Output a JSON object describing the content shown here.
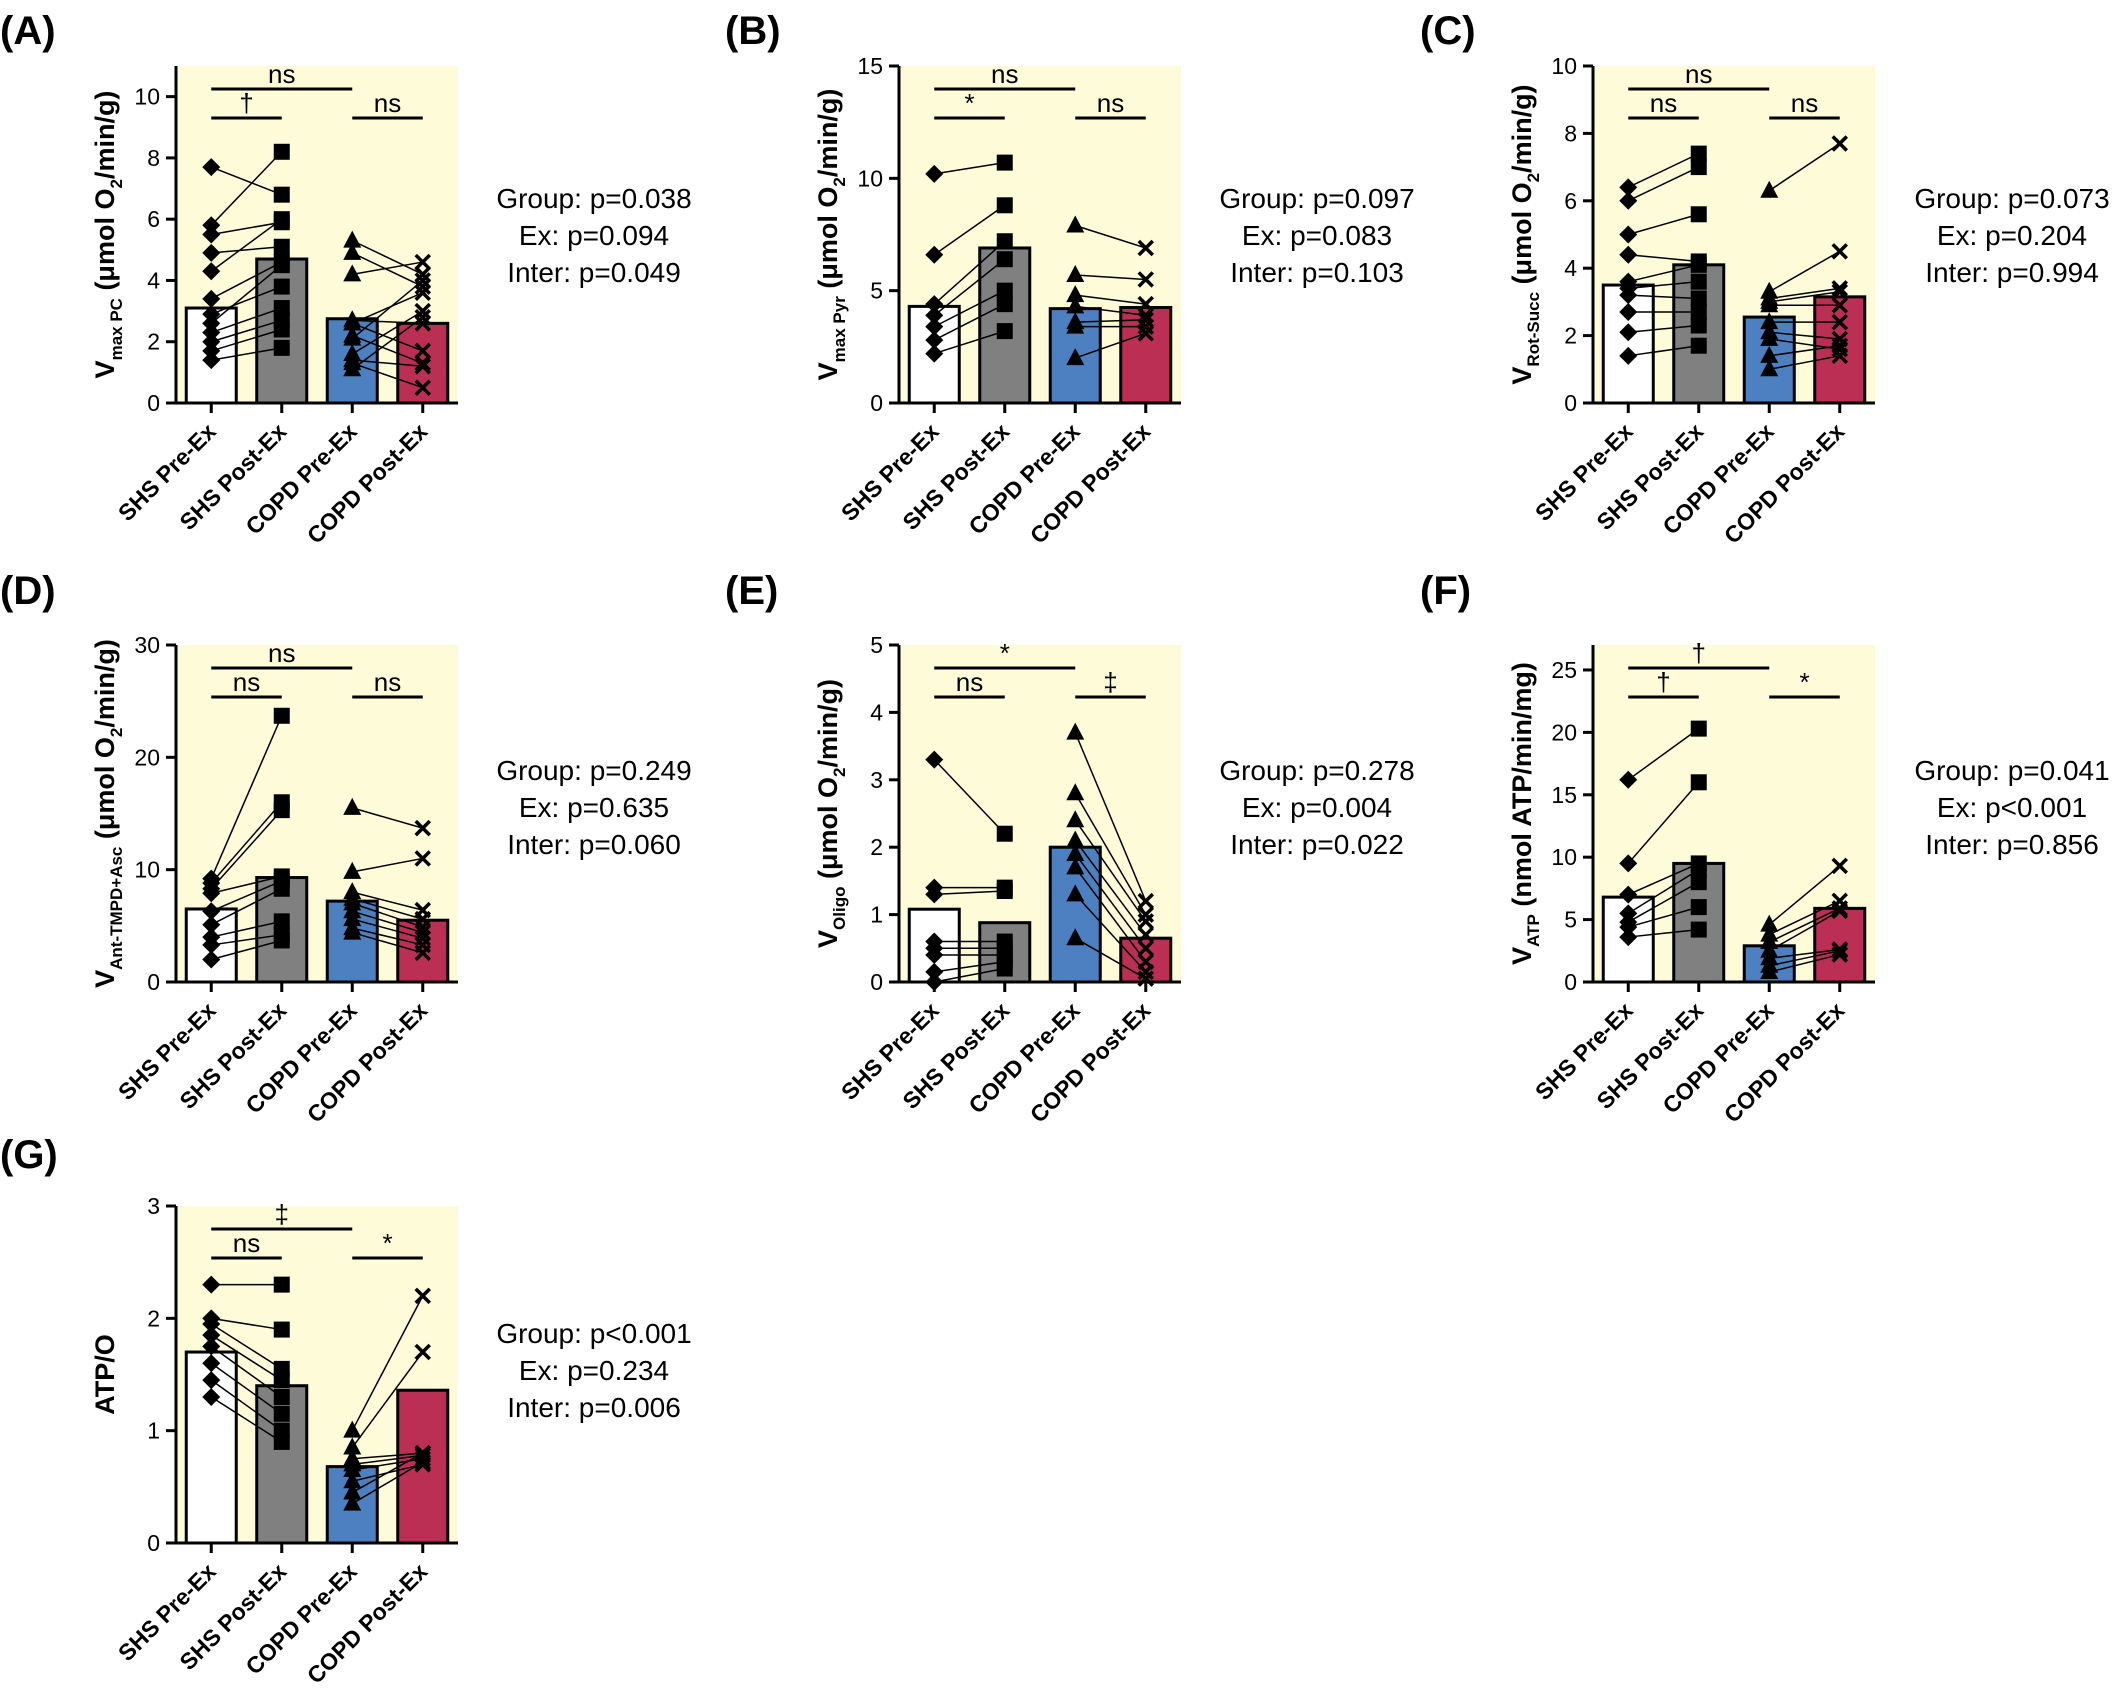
{
  "figure": {
    "background": "#fdfbd8",
    "colors": {
      "SHS Pre-Ex": "#ffffff",
      "SHS Post-Ex": "#808080",
      "COPD Pre-Ex": "#4c80c0",
      "COPD Post-Ex": "#bb2f55"
    }
  },
  "chart_data": [
    {
      "panel": "(A)",
      "type": "bar",
      "categories": [
        "SHS Pre-Ex",
        "SHS Post-Ex",
        "COPD Pre-Ex",
        "COPD Post-Ex"
      ],
      "ylabel_main": "V",
      "ylabel_sub": "max PC",
      "ylabel_tail": " (μmol O",
      "ylabel_sub2": "2",
      "ylabel_end": "/min/g)",
      "ylim": [
        0,
        11
      ],
      "yticks": [
        0,
        2,
        4,
        6,
        8,
        10
      ],
      "bar_values": [
        3.1,
        4.7,
        2.75,
        2.6
      ],
      "markers": [
        "diamond",
        "square",
        "triangle",
        "cross"
      ],
      "points": [
        [
          7.7,
          5.8,
          5.5,
          4.9,
          4.3,
          3.4,
          2.9,
          2.6,
          2.3,
          2.0,
          1.7,
          1.4
        ],
        [
          6.8,
          8.2,
          5.9,
          5.1,
          6.0,
          4.6,
          3.8,
          4.5,
          3.1,
          2.7,
          2.4,
          1.8
        ],
        [
          5.3,
          4.2,
          2.2,
          2.7,
          2.6,
          2.1,
          1.4,
          2.6,
          1.6,
          1.3,
          4.9,
          1.1
        ],
        [
          4.2,
          4.6,
          1.3,
          2.6,
          1.7,
          4.0,
          1.2,
          3.6,
          3.0,
          0.5,
          3.8,
          2.8
        ]
      ],
      "significance": [
        {
          "from": 0,
          "to": 2,
          "label": "ns",
          "level": 2
        },
        {
          "from": 0,
          "to": 1,
          "label": "†",
          "level": 1
        },
        {
          "from": 2,
          "to": 3,
          "label": "ns",
          "level": 1
        }
      ],
      "stats": [
        "Group: p=0.038",
        "Ex: p=0.094",
        "Inter: p=0.049"
      ]
    },
    {
      "panel": "(B)",
      "type": "bar",
      "categories": [
        "SHS Pre-Ex",
        "SHS Post-Ex",
        "COPD Pre-Ex",
        "COPD Post-Ex"
      ],
      "ylabel_main": "V",
      "ylabel_sub": "max Pyr",
      "ylabel_tail": " (μmol O",
      "ylabel_sub2": "2",
      "ylabel_end": "/min/g)",
      "ylim": [
        0,
        15
      ],
      "yticks": [
        0,
        5,
        10,
        15
      ],
      "bar_values": [
        4.3,
        6.9,
        4.2,
        4.25
      ],
      "markers": [
        "diamond",
        "square",
        "triangle",
        "cross"
      ],
      "points": [
        [
          10.2,
          6.6,
          4.4,
          3.9,
          3.4,
          2.8,
          2.2
        ],
        [
          10.7,
          8.8,
          7.2,
          6.4,
          5.0,
          4.4,
          3.2
        ],
        [
          7.9,
          5.7,
          4.8,
          4.3,
          3.6,
          3.4,
          2.0
        ],
        [
          6.9,
          5.5,
          4.4,
          3.9,
          3.7,
          3.4,
          3.1
        ]
      ],
      "significance": [
        {
          "from": 0,
          "to": 2,
          "label": "ns",
          "level": 2
        },
        {
          "from": 0,
          "to": 1,
          "label": "*",
          "level": 1
        },
        {
          "from": 2,
          "to": 3,
          "label": "ns",
          "level": 1
        }
      ],
      "stats": [
        "Group: p=0.097",
        "Ex: p=0.083",
        "Inter: p=0.103"
      ]
    },
    {
      "panel": "(C)",
      "type": "bar",
      "categories": [
        "SHS Pre-Ex",
        "SHS Post-Ex",
        "COPD Pre-Ex",
        "COPD Post-Ex"
      ],
      "ylabel_main": "V",
      "ylabel_sub": "Rot-Succ",
      "ylabel_tail": " (μmol O",
      "ylabel_sub2": "2",
      "ylabel_end": "/min/g)",
      "ylim": [
        0,
        10
      ],
      "yticks": [
        0,
        2,
        4,
        6,
        8,
        10
      ],
      "bar_values": [
        3.5,
        4.1,
        2.55,
        3.15
      ],
      "markers": [
        "diamond",
        "square",
        "triangle",
        "cross"
      ],
      "points": [
        [
          6.4,
          6.0,
          5.0,
          4.4,
          3.6,
          3.4,
          3.2,
          2.7,
          2.1,
          1.4
        ],
        [
          7.4,
          7.0,
          5.6,
          4.2,
          4.1,
          3.6,
          3.1,
          2.7,
          2.3,
          1.7
        ],
        [
          6.3,
          3.3,
          3.1,
          3.0,
          2.9,
          2.4,
          2.1,
          1.9,
          1.4,
          1.0
        ],
        [
          7.7,
          4.5,
          3.4,
          3.3,
          2.9,
          2.4,
          1.9,
          1.6,
          1.7,
          1.4
        ]
      ],
      "significance": [
        {
          "from": 0,
          "to": 2,
          "label": "ns",
          "level": 2
        },
        {
          "from": 0,
          "to": 1,
          "label": "ns",
          "level": 1
        },
        {
          "from": 2,
          "to": 3,
          "label": "ns",
          "level": 1
        }
      ],
      "stats": [
        "Group: p=0.073",
        "Ex: p=0.204",
        "Inter: p=0.994"
      ]
    },
    {
      "panel": "(D)",
      "type": "bar",
      "categories": [
        "SHS Pre-Ex",
        "SHS Post-Ex",
        "COPD Pre-Ex",
        "COPD Post-Ex"
      ],
      "ylabel_main": "V",
      "ylabel_sub": "Ant-TMPD+Asc",
      "ylabel_tail": " (μmol O",
      "ylabel_sub2": "2",
      "ylabel_end": "/min/g)",
      "ylim": [
        0,
        30
      ],
      "yticks": [
        0,
        10,
        20,
        30
      ],
      "bar_values": [
        6.5,
        9.3,
        7.2,
        5.5
      ],
      "markers": [
        "diamond",
        "square",
        "triangle",
        "cross"
      ],
      "points": [
        [
          9.2,
          8.8,
          8.3,
          7.9,
          6.3,
          5.1,
          4.0,
          3.3,
          2.0
        ],
        [
          23.7,
          16.0,
          15.3,
          9.4,
          9.0,
          8.3,
          5.4,
          4.2,
          3.7
        ],
        [
          15.5,
          9.8,
          8.0,
          7.4,
          7.0,
          6.3,
          5.6,
          4.8,
          4.4
        ],
        [
          13.7,
          11.0,
          6.4,
          5.6,
          4.9,
          4.4,
          3.9,
          3.3,
          2.6
        ]
      ],
      "significance": [
        {
          "from": 0,
          "to": 2,
          "label": "ns",
          "level": 2
        },
        {
          "from": 0,
          "to": 1,
          "label": "ns",
          "level": 1
        },
        {
          "from": 2,
          "to": 3,
          "label": "ns",
          "level": 1
        }
      ],
      "stats": [
        "Group: p=0.249",
        "Ex: p=0.635",
        "Inter: p=0.060"
      ]
    },
    {
      "panel": "(E)",
      "type": "bar",
      "categories": [
        "SHS Pre-Ex",
        "SHS Post-Ex",
        "COPD Pre-Ex",
        "COPD Post-Ex"
      ],
      "ylabel_main": "V",
      "ylabel_sub": "Oligo",
      "ylabel_tail": " (μmol O",
      "ylabel_sub2": "2",
      "ylabel_end": "/min/g)",
      "ylim": [
        0,
        5
      ],
      "yticks": [
        0,
        1,
        2,
        3,
        4,
        5
      ],
      "bar_values": [
        1.08,
        0.88,
        2.0,
        0.65
      ],
      "markers": [
        "diamond",
        "square",
        "triangle",
        "cross"
      ],
      "points": [
        [
          3.3,
          1.4,
          1.3,
          0.6,
          0.5,
          0.4,
          0.15,
          0.0
        ],
        [
          2.2,
          1.4,
          1.35,
          0.6,
          0.5,
          0.4,
          0.3,
          0.2
        ],
        [
          3.7,
          2.8,
          2.4,
          2.1,
          1.9,
          1.7,
          1.3,
          0.65
        ],
        [
          1.2,
          1.0,
          0.9,
          0.7,
          0.5,
          0.3,
          0.15,
          0.05
        ]
      ],
      "significance": [
        {
          "from": 0,
          "to": 2,
          "label": "*",
          "level": 2
        },
        {
          "from": 0,
          "to": 1,
          "label": "ns",
          "level": 1
        },
        {
          "from": 2,
          "to": 3,
          "label": "‡",
          "level": 1
        }
      ],
      "stats": [
        "Group: p=0.278",
        "Ex: p=0.004",
        "Inter: p=0.022"
      ]
    },
    {
      "panel": "(F)",
      "type": "bar",
      "categories": [
        "SHS Pre-Ex",
        "SHS Post-Ex",
        "COPD Pre-Ex",
        "COPD Post-Ex"
      ],
      "ylabel_main": "V",
      "ylabel_sub": "ATP",
      "ylabel_tail": " (nmol ATP/min/mg)",
      "ylabel_sub2": "",
      "ylabel_end": "",
      "ylim": [
        0,
        27
      ],
      "yticks": [
        0,
        5,
        10,
        15,
        20,
        25
      ],
      "bar_values": [
        6.8,
        9.5,
        2.9,
        5.9
      ],
      "markers": [
        "diamond",
        "square",
        "triangle",
        "cross"
      ],
      "points": [
        [
          16.2,
          9.5,
          7.0,
          5.5,
          4.8,
          4.4,
          3.6
        ],
        [
          20.3,
          16.0,
          9.5,
          9.0,
          8.0,
          6.0,
          4.2
        ],
        [
          4.6,
          3.8,
          3.2,
          2.5,
          1.9,
          1.3,
          0.8
        ],
        [
          9.3,
          6.5,
          5.9,
          5.7,
          2.6,
          2.5,
          2.2
        ]
      ],
      "significance": [
        {
          "from": 0,
          "to": 2,
          "label": "†",
          "level": 2
        },
        {
          "from": 0,
          "to": 1,
          "label": "†",
          "level": 1
        },
        {
          "from": 2,
          "to": 3,
          "label": "*",
          "level": 1
        }
      ],
      "stats": [
        "Group: p=0.041",
        "Ex: p<0.001",
        "Inter: p=0.856"
      ]
    },
    {
      "panel": "(G)",
      "type": "bar",
      "categories": [
        "SHS Pre-Ex",
        "SHS Post-Ex",
        "COPD Pre-Ex",
        "COPD Post-Ex"
      ],
      "ylabel_main": "ATP/O",
      "ylabel_sub": "",
      "ylabel_tail": "",
      "ylabel_sub2": "",
      "ylabel_end": "",
      "ylim": [
        0,
        3
      ],
      "yticks": [
        0,
        1,
        2,
        3
      ],
      "bar_values": [
        1.7,
        1.4,
        0.68,
        1.36
      ],
      "markers": [
        "diamond",
        "square",
        "triangle",
        "cross"
      ],
      "points": [
        [
          2.3,
          2.0,
          1.95,
          1.85,
          1.75,
          1.6,
          1.45,
          1.3
        ],
        [
          2.3,
          1.9,
          1.55,
          1.45,
          1.3,
          1.15,
          1.0,
          0.9
        ],
        [
          1.0,
          0.85,
          0.75,
          0.65,
          0.55,
          0.45,
          0.35,
          0.7
        ],
        [
          2.2,
          1.7,
          0.8,
          0.75,
          0.7,
          0.8,
          0.72,
          0.78
        ]
      ],
      "significance": [
        {
          "from": 0,
          "to": 2,
          "label": "‡",
          "level": 2
        },
        {
          "from": 0,
          "to": 1,
          "label": "ns",
          "level": 1
        },
        {
          "from": 2,
          "to": 3,
          "label": "*",
          "level": 1
        }
      ],
      "stats": [
        "Group: p<0.001",
        "Ex: p=0.234",
        "Inter: p=0.006"
      ]
    }
  ]
}
